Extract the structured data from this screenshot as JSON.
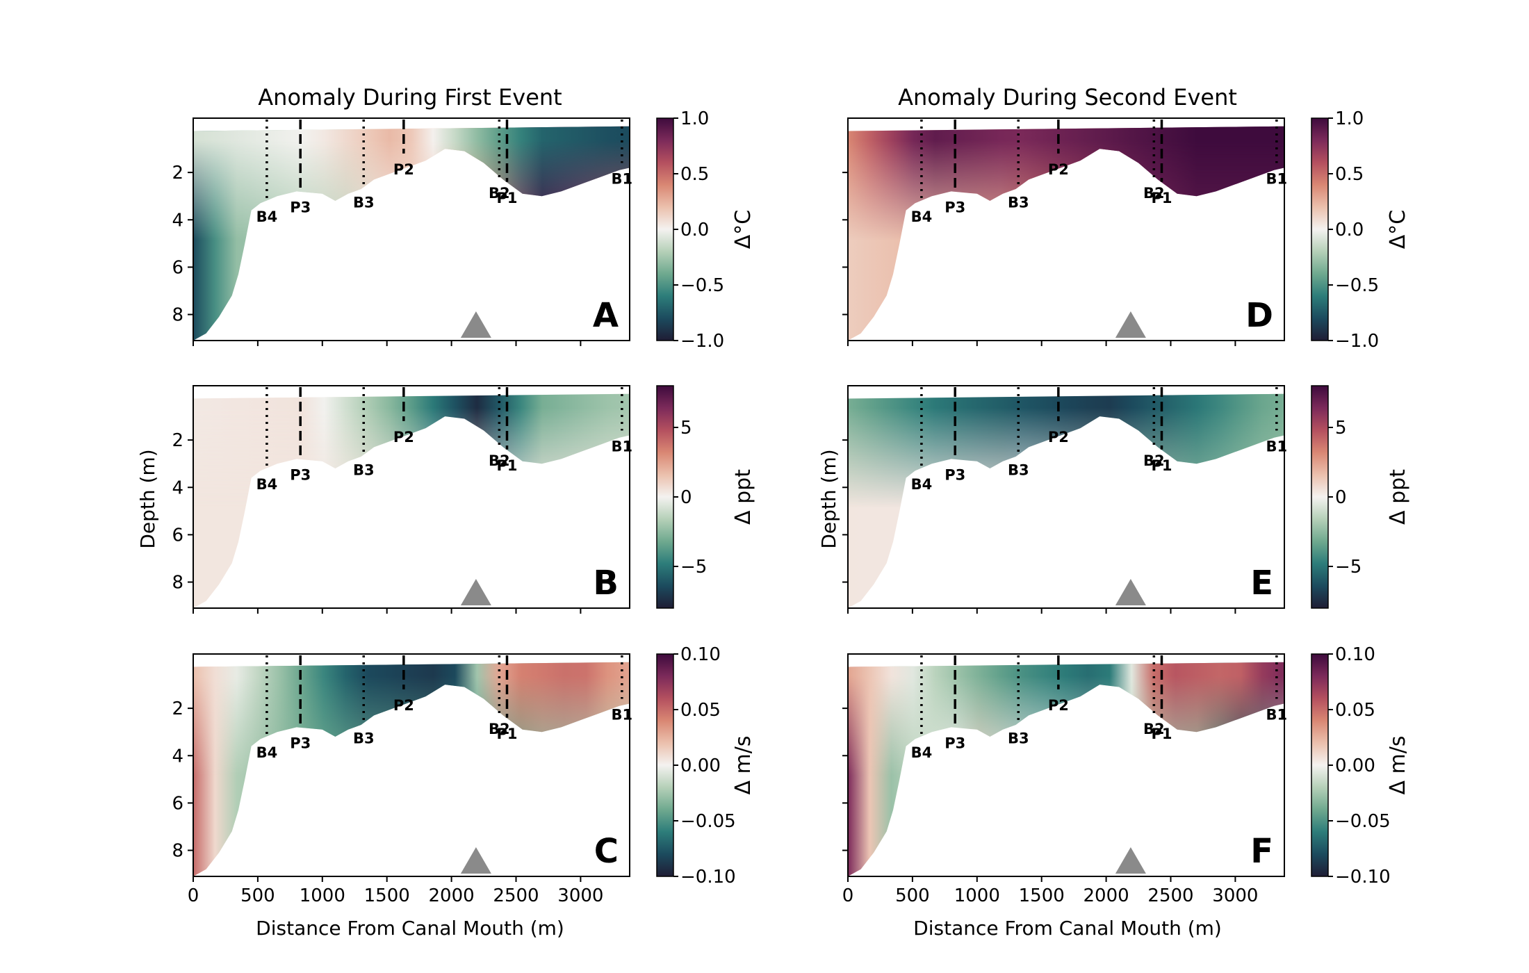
{
  "figure": {
    "column_titles": [
      "Anomaly During First Event",
      "Anomaly During Second Event"
    ],
    "x_axis_label": "Distance From Canal Mouth (m)",
    "y_axis_label": "Depth (m)"
  },
  "chart_data": [
    {
      "type": "heatmap",
      "panel": "A",
      "column": 0,
      "row": 0,
      "variable": "temperature",
      "colorbar_label": "Δ°C",
      "clim": [
        -1.0,
        1.0
      ],
      "colorbar_ticks": [
        "1.0",
        "0.5",
        "0.0",
        "−0.5",
        "−1.0"
      ],
      "xlim": [
        0,
        3380
      ],
      "ylim": [
        9.1,
        0
      ],
      "x_ticks": [
        0,
        500,
        1000,
        1500,
        2000,
        2500,
        3000
      ],
      "y_ticks": [
        2,
        4,
        6,
        8
      ],
      "surface_anomaly": [
        [
          0,
          -0.1
        ],
        [
          900,
          0.0
        ],
        [
          1600,
          0.25
        ],
        [
          2300,
          -0.4
        ],
        [
          2700,
          -0.7
        ],
        [
          3300,
          -0.8
        ]
      ],
      "deep_anomaly": [
        [
          0,
          -0.8
        ],
        [
          300,
          -0.3
        ],
        [
          1200,
          -0.15
        ],
        [
          2300,
          0.4
        ],
        [
          2700,
          0.95
        ],
        [
          3300,
          0.6
        ]
      ]
    },
    {
      "type": "heatmap",
      "panel": "B",
      "column": 0,
      "row": 1,
      "variable": "salinity",
      "colorbar_label": "Δ ppt",
      "clim": [
        -8,
        8
      ],
      "colorbar_ticks": [
        "5",
        "0",
        "−5"
      ],
      "xlim": [
        0,
        3380
      ],
      "ylim": [
        9.1,
        0
      ],
      "x_ticks": [
        0,
        500,
        1000,
        1500,
        2000,
        2500,
        3000
      ],
      "y_ticks": [
        2,
        4,
        6,
        8
      ],
      "surface_anomaly": [
        [
          0,
          0.3
        ],
        [
          900,
          0.5
        ],
        [
          1600,
          -3
        ],
        [
          2200,
          -7.5
        ],
        [
          2700,
          -3
        ],
        [
          3300,
          -2
        ]
      ],
      "deep_anomaly": [
        [
          0,
          0.4
        ],
        [
          1200,
          0.4
        ],
        [
          2300,
          0.3
        ],
        [
          2700,
          0.3
        ],
        [
          3300,
          0.3
        ]
      ]
    },
    {
      "type": "heatmap",
      "panel": "C",
      "column": 0,
      "row": 2,
      "variable": "velocity",
      "colorbar_label": "Δ m/s",
      "clim": [
        -0.1,
        0.1
      ],
      "colorbar_ticks": [
        "0.10",
        "0.05",
        "0.00",
        "−0.05",
        "−0.10"
      ],
      "xlim": [
        0,
        3380
      ],
      "ylim": [
        9.1,
        0
      ],
      "x_ticks": [
        0,
        500,
        1000,
        1500,
        2000,
        2500,
        3000
      ],
      "y_ticks": [
        2,
        4,
        6,
        8
      ],
      "surface_anomaly": [
        [
          0,
          0.02
        ],
        [
          700,
          -0.03
        ],
        [
          1300,
          -0.08
        ],
        [
          2000,
          -0.09
        ],
        [
          2400,
          0.04
        ],
        [
          3000,
          0.05
        ],
        [
          3300,
          0.03
        ]
      ],
      "deep_anomaly": [
        [
          0,
          0.05
        ],
        [
          300,
          -0.02
        ],
        [
          1000,
          -0.04
        ],
        [
          2300,
          -0.05
        ],
        [
          2700,
          -0.03
        ],
        [
          3300,
          -0.02
        ]
      ]
    },
    {
      "type": "heatmap",
      "panel": "D",
      "column": 1,
      "row": 0,
      "variable": "temperature",
      "colorbar_label": "Δ°C",
      "clim": [
        -1.0,
        1.0
      ],
      "colorbar_ticks": [
        "1.0",
        "0.5",
        "0.0",
        "−0.5",
        "−1.0"
      ],
      "xlim": [
        0,
        3380
      ],
      "ylim": [
        9.1,
        0
      ],
      "x_ticks": [
        0,
        500,
        1000,
        1500,
        2000,
        2500,
        3000
      ],
      "y_ticks": [
        2,
        4,
        6,
        8
      ],
      "surface_anomaly": [
        [
          0,
          0.4
        ],
        [
          600,
          0.9
        ],
        [
          1300,
          0.8
        ],
        [
          2000,
          0.9
        ],
        [
          2700,
          1.0
        ],
        [
          3300,
          1.0
        ]
      ],
      "deep_anomaly": [
        [
          0,
          0.15
        ],
        [
          400,
          0.2
        ],
        [
          1200,
          0.3
        ],
        [
          2300,
          0.8
        ],
        [
          2700,
          0.9
        ],
        [
          3300,
          0.9
        ]
      ]
    },
    {
      "type": "heatmap",
      "panel": "E",
      "column": 1,
      "row": 1,
      "variable": "salinity",
      "colorbar_label": "Δ ppt",
      "clim": [
        -8,
        8
      ],
      "colorbar_ticks": [
        "5",
        "0",
        "−5"
      ],
      "xlim": [
        0,
        3380
      ],
      "ylim": [
        9.1,
        0
      ],
      "x_ticks": [
        0,
        500,
        1000,
        1500,
        2000,
        2500,
        3000
      ],
      "y_ticks": [
        2,
        4,
        6,
        8
      ],
      "surface_anomaly": [
        [
          0,
          -3
        ],
        [
          700,
          -5
        ],
        [
          1300,
          -6
        ],
        [
          2000,
          -7
        ],
        [
          2700,
          -5
        ],
        [
          3300,
          -3
        ]
      ],
      "deep_anomaly": [
        [
          0,
          0.4
        ],
        [
          1200,
          0.3
        ],
        [
          2300,
          -1.5
        ],
        [
          2700,
          -2.5
        ],
        [
          3300,
          -2
        ]
      ]
    },
    {
      "type": "heatmap",
      "panel": "F",
      "column": 1,
      "row": 2,
      "variable": "velocity",
      "colorbar_label": "Δ m/s",
      "clim": [
        -0.1,
        0.1
      ],
      "colorbar_ticks": [
        "0.10",
        "0.05",
        "0.00",
        "−0.05",
        "−0.10"
      ],
      "xlim": [
        0,
        3380
      ],
      "ylim": [
        9.1,
        0
      ],
      "x_ticks": [
        0,
        500,
        1000,
        1500,
        2000,
        2500,
        3000
      ],
      "y_ticks": [
        2,
        4,
        6,
        8
      ],
      "surface_anomaly": [
        [
          0,
          0.03
        ],
        [
          700,
          -0.02
        ],
        [
          1300,
          -0.05
        ],
        [
          2000,
          -0.07
        ],
        [
          2400,
          0.06
        ],
        [
          3000,
          0.05
        ],
        [
          3300,
          0.08
        ]
      ],
      "deep_anomaly": [
        [
          0,
          0.08
        ],
        [
          300,
          -0.03
        ],
        [
          1000,
          0.01
        ],
        [
          2300,
          -0.02
        ],
        [
          2700,
          -0.03
        ],
        [
          3100,
          -0.08
        ],
        [
          3300,
          -0.02
        ]
      ]
    }
  ],
  "bathymetry": [
    [
      0,
      9.1
    ],
    [
      100,
      8.8
    ],
    [
      200,
      8.1
    ],
    [
      300,
      7.2
    ],
    [
      350,
      6.3
    ],
    [
      400,
      5.0
    ],
    [
      450,
      3.6
    ],
    [
      520,
      3.3
    ],
    [
      650,
      3.0
    ],
    [
      800,
      2.8
    ],
    [
      1000,
      2.9
    ],
    [
      1100,
      3.2
    ],
    [
      1200,
      2.9
    ],
    [
      1300,
      2.7
    ],
    [
      1400,
      2.3
    ],
    [
      1550,
      2.0
    ],
    [
      1650,
      1.8
    ],
    [
      1800,
      1.5
    ],
    [
      1950,
      1.0
    ],
    [
      2100,
      1.1
    ],
    [
      2250,
      1.6
    ],
    [
      2400,
      2.3
    ],
    [
      2550,
      2.9
    ],
    [
      2700,
      3.0
    ],
    [
      2850,
      2.8
    ],
    [
      3000,
      2.5
    ],
    [
      3150,
      2.2
    ],
    [
      3300,
      1.9
    ],
    [
      3380,
      1.8
    ]
  ],
  "stations": [
    {
      "label": "B4",
      "x": 570,
      "style": "dotted",
      "bottom": 3.2
    },
    {
      "label": "P3",
      "x": 830,
      "style": "dashed",
      "bottom": 2.8
    },
    {
      "label": "B3",
      "x": 1320,
      "style": "dotted",
      "bottom": 2.6
    },
    {
      "label": "P2",
      "x": 1630,
      "style": "dashed",
      "bottom": 1.2
    },
    {
      "label": "B2",
      "x": 2370,
      "style": "dotted",
      "bottom": 2.2
    },
    {
      "label": "P1",
      "x": 2430,
      "style": "dashed",
      "bottom": 2.4
    },
    {
      "label": "B1",
      "x": 3320,
      "style": "dotted",
      "bottom": 1.6
    }
  ],
  "marker_x": 2190,
  "colormap": [
    "#1f1d35",
    "#1c4b5e",
    "#2d7d7a",
    "#6fa98f",
    "#b5d0b8",
    "#f4f2f0",
    "#ebc0ad",
    "#d98773",
    "#b4505f",
    "#7c2a5a",
    "#3e0b3d"
  ]
}
